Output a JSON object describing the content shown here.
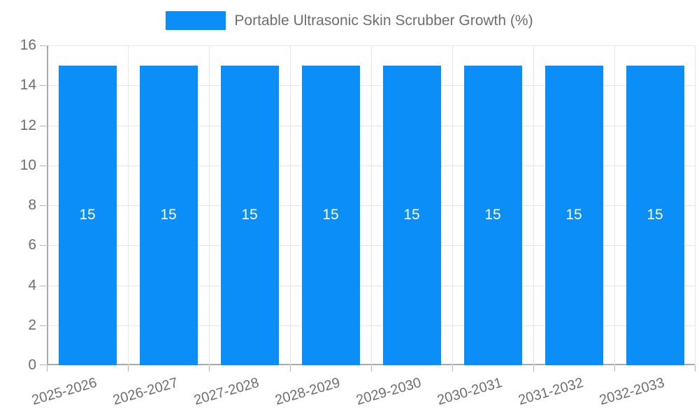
{
  "legend": {
    "label": "Portable Ultrasonic Skin Scrubber Growth (%)"
  },
  "colors": {
    "bar": "#0b8ef8",
    "grid": "#e6e6e6",
    "axis": "#a9a9a9",
    "tick": "#b3b3b3",
    "text": "#6e6e6e",
    "value_label": "#ffffff",
    "background": "#ffffff"
  },
  "chart_data": {
    "type": "bar",
    "title": "Portable Ultrasonic Skin Scrubber Growth (%)",
    "categories": [
      "2025-2026",
      "2026-2027",
      "2027-2028",
      "2028-2029",
      "2029-2030",
      "2030-2031",
      "2031-2032",
      "2032-2033"
    ],
    "values": [
      15,
      15,
      15,
      15,
      15,
      15,
      15,
      15
    ],
    "bar_value_labels": [
      "15",
      "15",
      "15",
      "15",
      "15",
      "15",
      "15",
      "15"
    ],
    "series_name": "Portable Ultrasonic Skin Scrubber Growth (%)",
    "xlabel": "",
    "ylabel": "",
    "ylim": [
      0,
      16
    ],
    "yticks": [
      0,
      2,
      4,
      6,
      8,
      10,
      12,
      14,
      16
    ],
    "grid": true,
    "legend_position": "top",
    "x_tick_rotation_deg": -16,
    "bar_labels_inside": true
  }
}
